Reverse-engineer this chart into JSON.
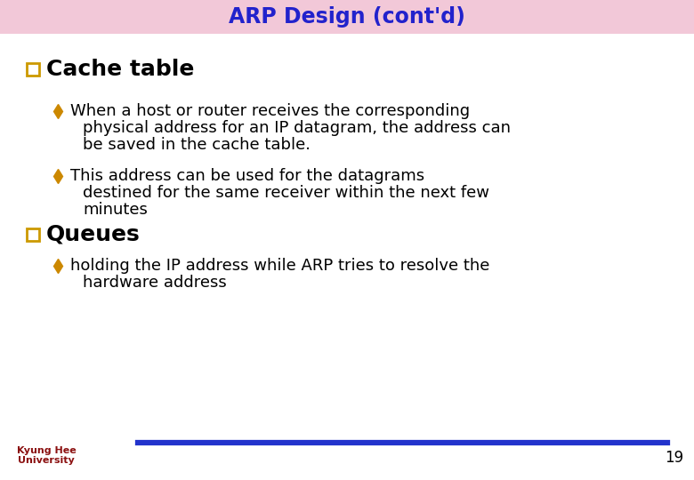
{
  "title": "ARP Design (cont'd)",
  "title_color": "#2222CC",
  "title_bg_color": "#F2C8D8",
  "background_color": "#FFFFFF",
  "section1_header": "Cache table",
  "section1_bullet1_line1": "When a host or router receives the corresponding",
  "section1_bullet1_line2": "physical address for an IP datagram, the address can",
  "section1_bullet1_line3": "be saved in the cache table.",
  "section1_bullet2_line1": "This address can be used for the datagrams",
  "section1_bullet2_line2": "destined for the same receiver within the next few",
  "section1_bullet2_line3": "minutes",
  "section2_header": "Queues",
  "section2_bullet1_line1": "holding the IP address while ARP tries to resolve the",
  "section2_bullet1_line2": "hardware address",
  "footer_left1": "Kyung Hee",
  "footer_left2": "University",
  "footer_number": "19",
  "bullet_color": "#CC8800",
  "bullet_text_color": "#000000",
  "section_header_color": "#000000",
  "line_color": "#2233CC",
  "footer_text_color": "#8B1010",
  "square_bullet_fill": "#FFFFFF",
  "square_bullet_border": "#CC9900",
  "title_fontsize": 17,
  "section_fontsize": 18,
  "bullet_fontsize": 13,
  "footer_fontsize": 8,
  "page_num_fontsize": 12
}
